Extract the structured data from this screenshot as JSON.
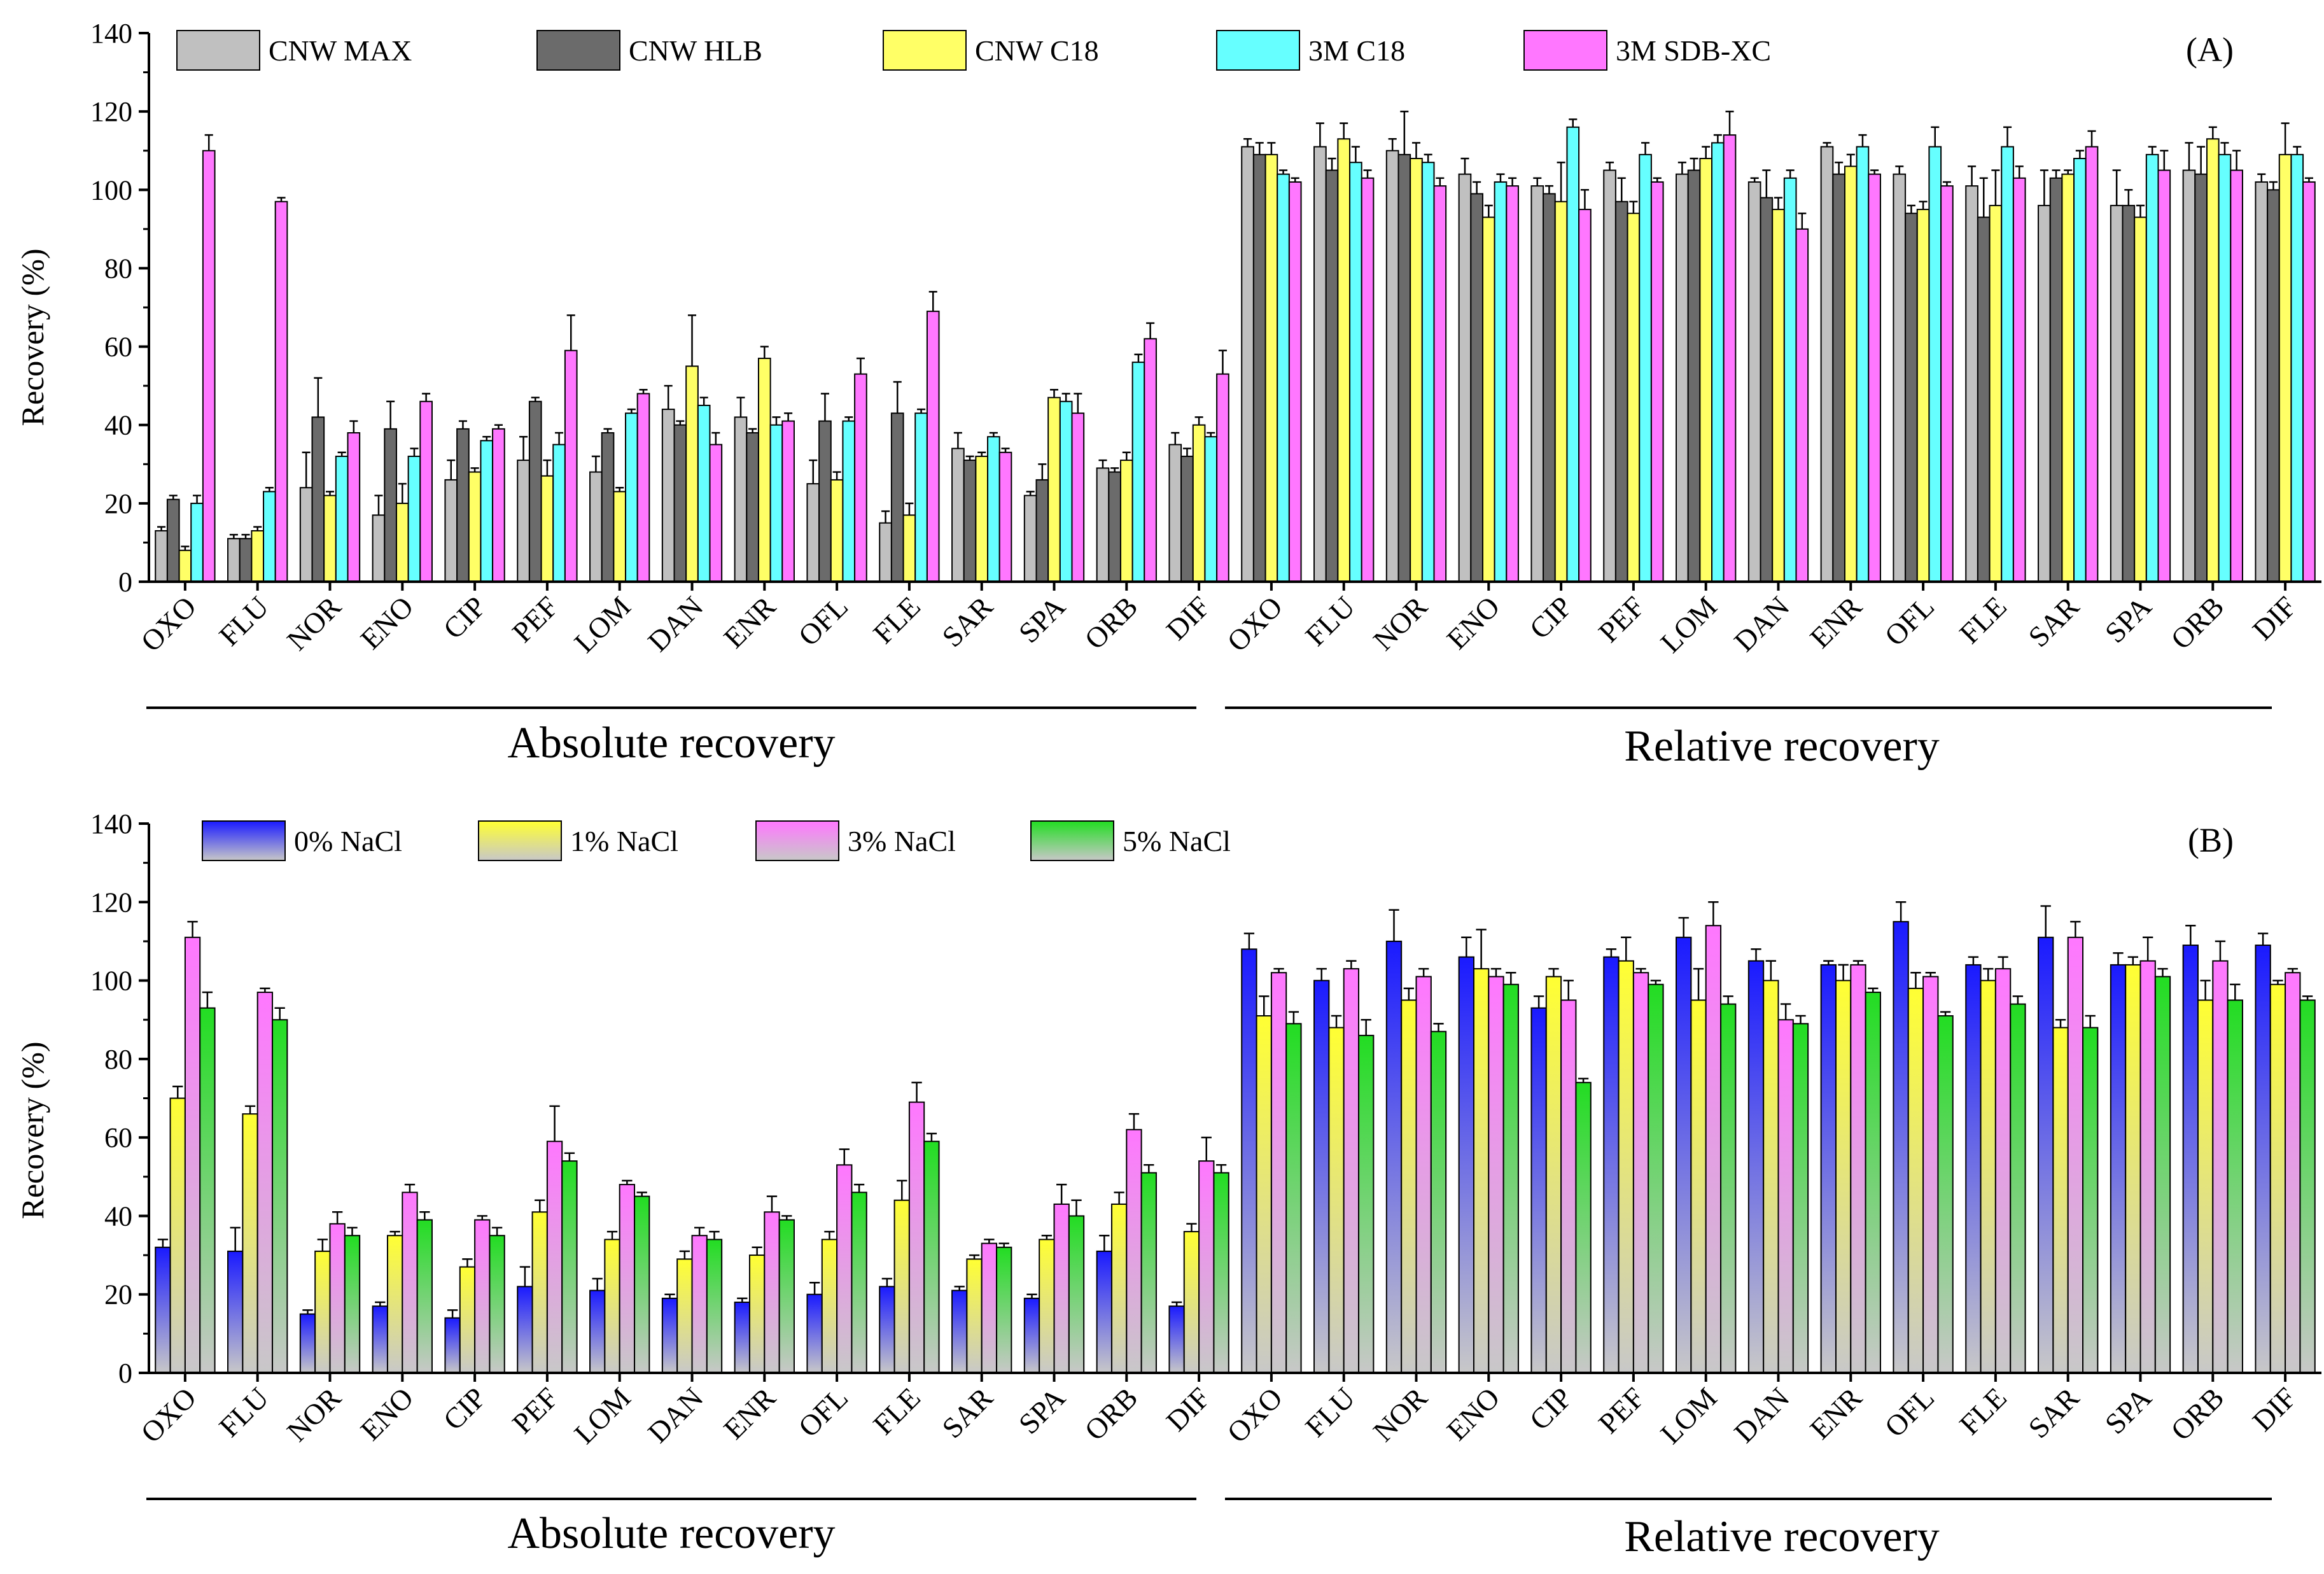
{
  "chart_data": [
    {
      "type": "bar",
      "panel_label": "(A)",
      "title": "",
      "xlabel": "",
      "ylabel": "Recovery (%)",
      "ylim": [
        0,
        140
      ],
      "yticks": [
        0,
        20,
        40,
        60,
        80,
        100,
        120,
        140
      ],
      "grid": false,
      "legend_position": "top",
      "categories": [
        "OXO",
        "FLU",
        "NOR",
        "ENO",
        "CIP",
        "PEF",
        "LOM",
        "DAN",
        "ENR",
        "OFL",
        "FLE",
        "SAR",
        "SPA",
        "ORB",
        "DIF",
        "OXO",
        "FLU",
        "NOR",
        "ENO",
        "CIP",
        "PEF",
        "LOM",
        "DAN",
        "ENR",
        "OFL",
        "FLE",
        "SAR",
        "SPA",
        "ORB",
        "DIF"
      ],
      "group_titles": [
        "Absolute recovery",
        "Relative recovery"
      ],
      "series": [
        {
          "name": "CNW MAX",
          "color": "#c0c0c0",
          "values": [
            13,
            11,
            24,
            17,
            26,
            31,
            28,
            44,
            42,
            25,
            15,
            34,
            22,
            29,
            35,
            111,
            111,
            110,
            104,
            101,
            105,
            104,
            102,
            111,
            104,
            101,
            96,
            96,
            105,
            102
          ],
          "errors": [
            1,
            1,
            9,
            5,
            5,
            6,
            4,
            6,
            5,
            6,
            3,
            4,
            1,
            2,
            3,
            2,
            6,
            3,
            4,
            2,
            2,
            3,
            1,
            1,
            2,
            5,
            9,
            9,
            7,
            2
          ]
        },
        {
          "name": "CNW HLB",
          "color": "#6b6b6b",
          "values": [
            21,
            11,
            42,
            39,
            39,
            46,
            38,
            40,
            38,
            41,
            43,
            31,
            26,
            28,
            32,
            109,
            105,
            109,
            99,
            99,
            97,
            105,
            98,
            104,
            94,
            93,
            103,
            96,
            104,
            100
          ],
          "errors": [
            1,
            1,
            10,
            7,
            2,
            1,
            1,
            1,
            1,
            7,
            8,
            1,
            4,
            1,
            2,
            3,
            3,
            11,
            3,
            2,
            6,
            3,
            7,
            3,
            2,
            10,
            2,
            4,
            7,
            2
          ]
        },
        {
          "name": "CNW C18",
          "color": "#ffff66",
          "values": [
            8,
            13,
            22,
            20,
            28,
            27,
            23,
            55,
            57,
            26,
            17,
            32,
            47,
            31,
            40,
            109,
            113,
            108,
            93,
            97,
            94,
            108,
            95,
            106,
            95,
            96,
            104,
            93,
            113,
            109
          ],
          "errors": [
            1,
            1,
            1,
            5,
            1,
            4,
            1,
            13,
            3,
            2,
            3,
            1,
            2,
            2,
            2,
            3,
            4,
            4,
            3,
            10,
            3,
            3,
            3,
            3,
            2,
            9,
            1,
            3,
            3,
            8
          ]
        },
        {
          "name": "3M C18",
          "color": "#66ffff",
          "values": [
            20,
            23,
            32,
            32,
            36,
            35,
            43,
            45,
            40,
            41,
            43,
            37,
            46,
            56,
            37,
            104,
            107,
            107,
            102,
            116,
            109,
            112,
            103,
            111,
            111,
            111,
            108,
            109,
            109,
            109
          ],
          "errors": [
            2,
            1,
            1,
            2,
            1,
            3,
            1,
            2,
            2,
            1,
            1,
            1,
            2,
            2,
            1,
            1,
            4,
            2,
            2,
            2,
            3,
            2,
            2,
            3,
            5,
            5,
            2,
            2,
            3,
            2
          ]
        },
        {
          "name": "3M SDB-XC",
          "color": "#ff77ff",
          "values": [
            110,
            97,
            38,
            46,
            39,
            59,
            48,
            35,
            41,
            53,
            69,
            33,
            43,
            62,
            53,
            102,
            103,
            101,
            101,
            95,
            102,
            114,
            90,
            104,
            101,
            103,
            111,
            105,
            105,
            102
          ],
          "errors": [
            4,
            1,
            3,
            2,
            1,
            9,
            1,
            3,
            2,
            4,
            5,
            1,
            5,
            4,
            6,
            1,
            2,
            2,
            2,
            5,
            1,
            6,
            4,
            1,
            1,
            3,
            4,
            5,
            5,
            1
          ]
        }
      ]
    },
    {
      "type": "bar",
      "panel_label": "(B)",
      "title": "",
      "xlabel": "",
      "ylabel": "Recovery (%)",
      "ylim": [
        0,
        140
      ],
      "yticks": [
        0,
        20,
        40,
        60,
        80,
        100,
        120,
        140
      ],
      "grid": false,
      "legend_position": "top",
      "categories": [
        "OXO",
        "FLU",
        "NOR",
        "ENO",
        "CIP",
        "PEF",
        "LOM",
        "DAN",
        "ENR",
        "OFL",
        "FLE",
        "SAR",
        "SPA",
        "ORB",
        "DIF",
        "OXO",
        "FLU",
        "NOR",
        "ENO",
        "CIP",
        "PEF",
        "LOM",
        "DAN",
        "ENR",
        "OFL",
        "FLE",
        "SAR",
        "SPA",
        "ORB",
        "DIF"
      ],
      "group_titles": [
        "Absolute recovery",
        "Relative recovery"
      ],
      "series": [
        {
          "name": "0% NaCl",
          "color": "#1a1aff",
          "values": [
            32,
            31,
            15,
            17,
            14,
            22,
            21,
            19,
            18,
            20,
            22,
            21,
            19,
            31,
            17,
            108,
            100,
            110,
            106,
            93,
            106,
            111,
            105,
            104,
            115,
            104,
            111,
            104,
            109,
            109
          ],
          "errors": [
            2,
            6,
            1,
            1,
            2,
            5,
            3,
            1,
            1,
            3,
            2,
            1,
            1,
            4,
            1,
            4,
            3,
            8,
            5,
            3,
            2,
            5,
            3,
            1,
            5,
            2,
            8,
            3,
            5,
            3
          ]
        },
        {
          "name": "1% NaCl",
          "color": "#ffff33",
          "values": [
            70,
            66,
            31,
            35,
            27,
            41,
            34,
            29,
            30,
            34,
            44,
            29,
            34,
            43,
            36,
            91,
            88,
            95,
            103,
            101,
            105,
            95,
            100,
            100,
            98,
            100,
            88,
            104,
            95,
            99
          ],
          "errors": [
            3,
            2,
            3,
            1,
            2,
            3,
            2,
            2,
            2,
            2,
            5,
            1,
            1,
            3,
            2,
            5,
            3,
            3,
            10,
            2,
            6,
            8,
            5,
            4,
            4,
            3,
            2,
            2,
            5,
            1
          ]
        },
        {
          "name": "3% NaCl",
          "color": "#ff77ff",
          "values": [
            111,
            97,
            38,
            46,
            39,
            59,
            48,
            35,
            41,
            53,
            69,
            33,
            43,
            62,
            54,
            102,
            103,
            101,
            101,
            95,
            102,
            114,
            90,
            104,
            101,
            103,
            111,
            105,
            105,
            102
          ],
          "errors": [
            4,
            1,
            3,
            2,
            1,
            9,
            1,
            2,
            4,
            4,
            5,
            1,
            5,
            4,
            6,
            1,
            2,
            2,
            2,
            5,
            1,
            6,
            4,
            1,
            1,
            3,
            4,
            6,
            5,
            1
          ]
        },
        {
          "name": "5% NaCl",
          "color": "#22dd22",
          "values": [
            93,
            90,
            35,
            39,
            35,
            54,
            45,
            34,
            39,
            46,
            59,
            32,
            40,
            51,
            51,
            89,
            86,
            87,
            99,
            74,
            99,
            94,
            89,
            97,
            91,
            94,
            88,
            101,
            95,
            95
          ],
          "errors": [
            4,
            3,
            2,
            2,
            2,
            2,
            1,
            2,
            1,
            2,
            2,
            1,
            4,
            2,
            2,
            3,
            4,
            2,
            3,
            1,
            1,
            2,
            2,
            1,
            1,
            2,
            3,
            2,
            4,
            1
          ]
        }
      ]
    }
  ]
}
